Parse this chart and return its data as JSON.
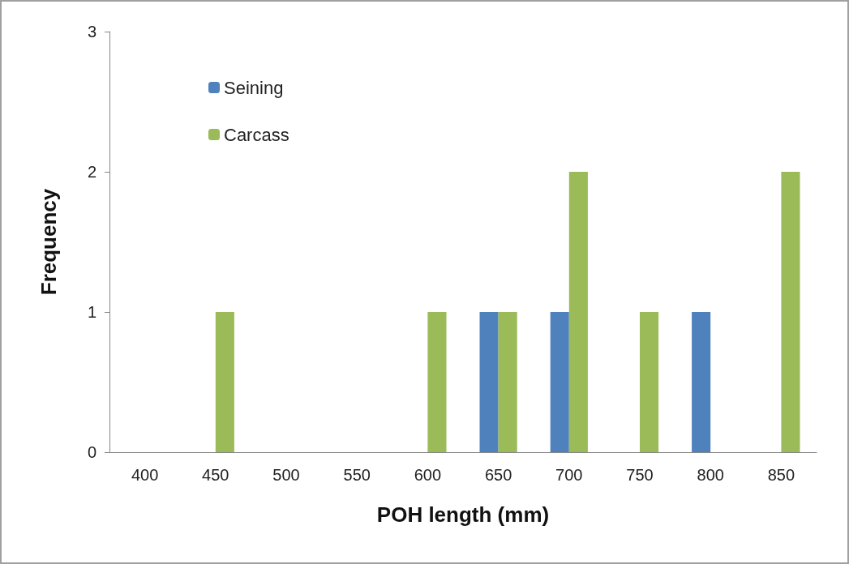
{
  "chart_data": {
    "type": "bar",
    "xlabel": "POH length (mm)",
    "ylabel": "Frequency",
    "categories": [
      "400",
      "450",
      "500",
      "550",
      "600",
      "650",
      "700",
      "750",
      "800",
      "850"
    ],
    "series": [
      {
        "name": "Seining",
        "color": "#4f81bd",
        "values": [
          0,
          0,
          0,
          0,
          0,
          1,
          1,
          0,
          1,
          0
        ]
      },
      {
        "name": "Carcass",
        "color": "#9bbb59",
        "values": [
          0,
          1,
          0,
          0,
          1,
          1,
          2,
          1,
          0,
          2
        ]
      }
    ],
    "ylim": [
      0,
      3
    ],
    "yticks": [
      0,
      1,
      2,
      3
    ],
    "grid": false,
    "legend": "top left"
  }
}
